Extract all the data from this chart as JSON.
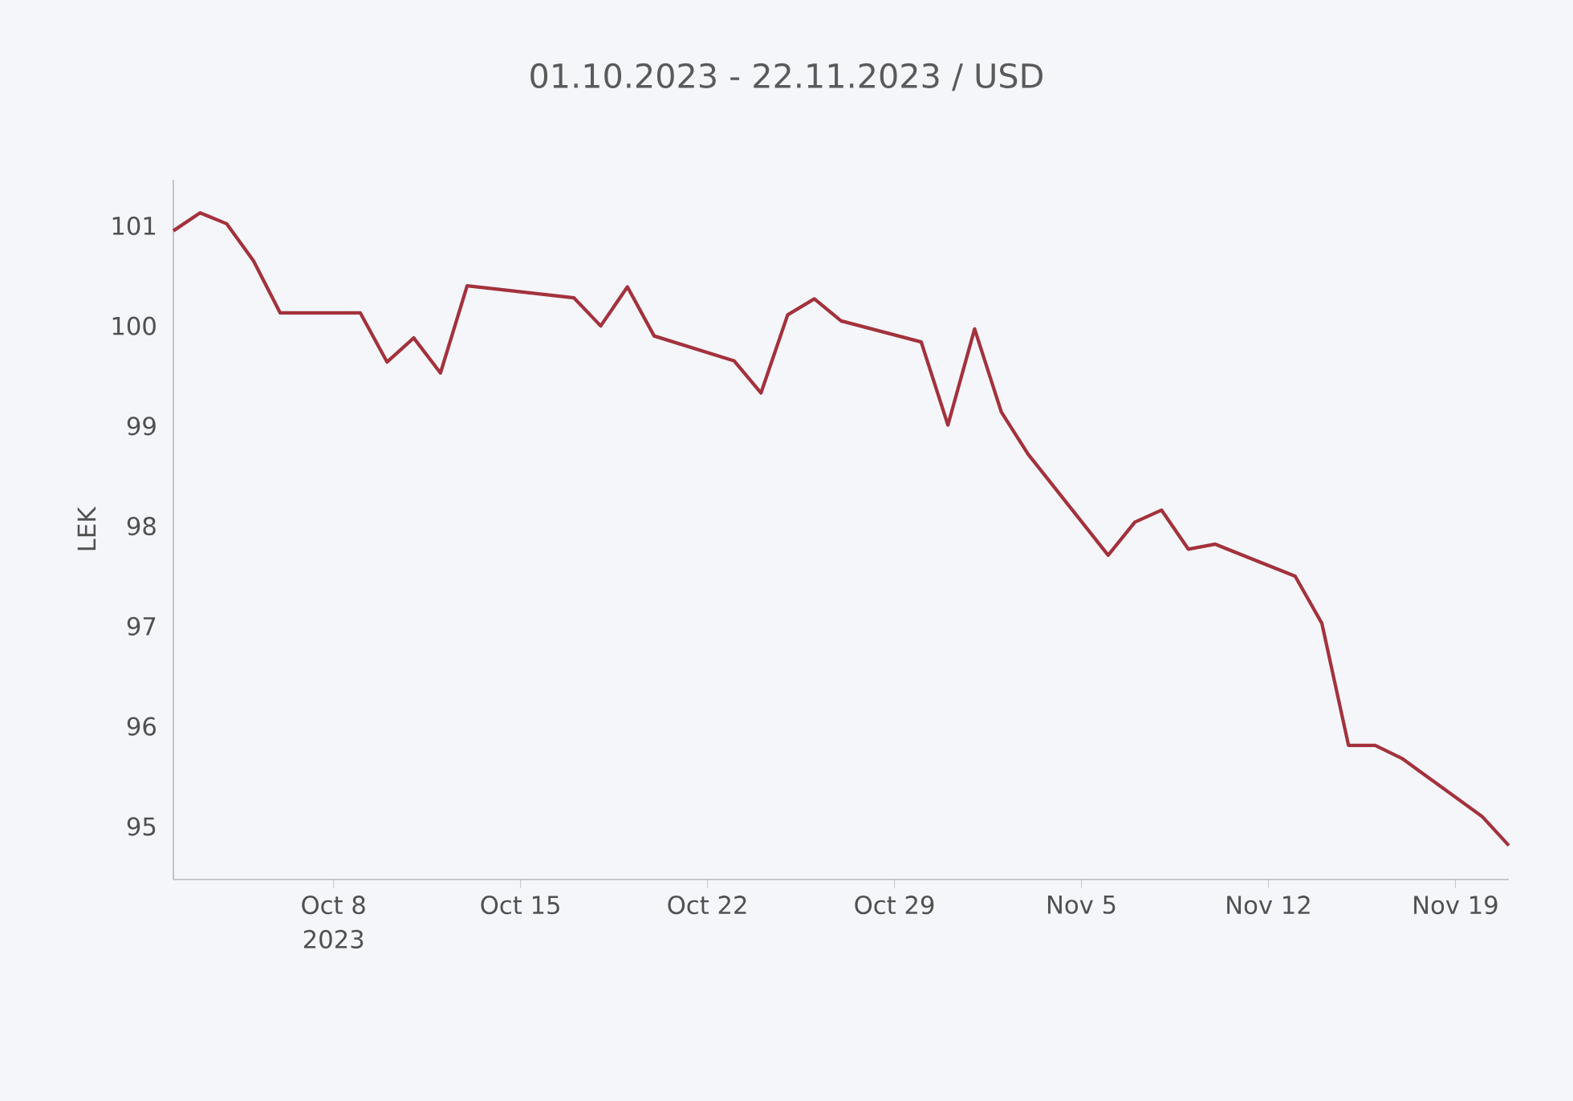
{
  "chart_data": {
    "type": "line",
    "title": "01.10.2023 - 22.11.2023 / USD",
    "ylabel": "LEK",
    "x": [
      "2023-10-02",
      "2023-10-03",
      "2023-10-04",
      "2023-10-05",
      "2023-10-06",
      "2023-10-09",
      "2023-10-10",
      "2023-10-11",
      "2023-10-12",
      "2023-10-13",
      "2023-10-17",
      "2023-10-18",
      "2023-10-19",
      "2023-10-20",
      "2023-10-23",
      "2023-10-24",
      "2023-10-25",
      "2023-10-26",
      "2023-10-27",
      "2023-10-30",
      "2023-10-31",
      "2023-11-01",
      "2023-11-02",
      "2023-11-03",
      "2023-11-06",
      "2023-11-07",
      "2023-11-08",
      "2023-11-09",
      "2023-11-10",
      "2023-11-13",
      "2023-11-14",
      "2023-11-15",
      "2023-11-16",
      "2023-11-17",
      "2023-11-20",
      "2023-11-21"
    ],
    "series": [
      {
        "color": "#a3323c",
        "values": [
          100.95,
          101.13,
          101.02,
          100.65,
          100.13,
          100.13,
          99.64,
          99.88,
          99.53,
          100.4,
          100.28,
          100.0,
          100.39,
          99.9,
          99.65,
          99.33,
          100.11,
          100.27,
          100.05,
          99.84,
          99.01,
          99.97,
          99.14,
          98.72,
          97.71,
          98.04,
          98.16,
          97.77,
          97.82,
          97.5,
          97.03,
          95.81,
          95.81,
          95.68,
          95.1,
          94.81
        ]
      }
    ],
    "xlim": [
      "2023-10-02",
      "2023-11-21"
    ],
    "xticks": [
      {
        "value": "2023-10-08",
        "label": "Oct 8"
      },
      {
        "value": "2023-10-15",
        "label": "Oct 15"
      },
      {
        "value": "2023-10-22",
        "label": "Oct 22"
      },
      {
        "value": "2023-10-29",
        "label": "Oct 29"
      },
      {
        "value": "2023-11-05",
        "label": "Nov 5"
      },
      {
        "value": "2023-11-12",
        "label": "Nov 12"
      },
      {
        "value": "2023-11-19",
        "label": "Nov 19"
      }
    ],
    "ylim": [
      94.47,
      101.46
    ],
    "yticks": [
      95,
      96,
      97,
      98,
      99,
      100,
      101
    ],
    "annotations": [
      "2023"
    ],
    "marker": "none",
    "line_style": "solid"
  }
}
